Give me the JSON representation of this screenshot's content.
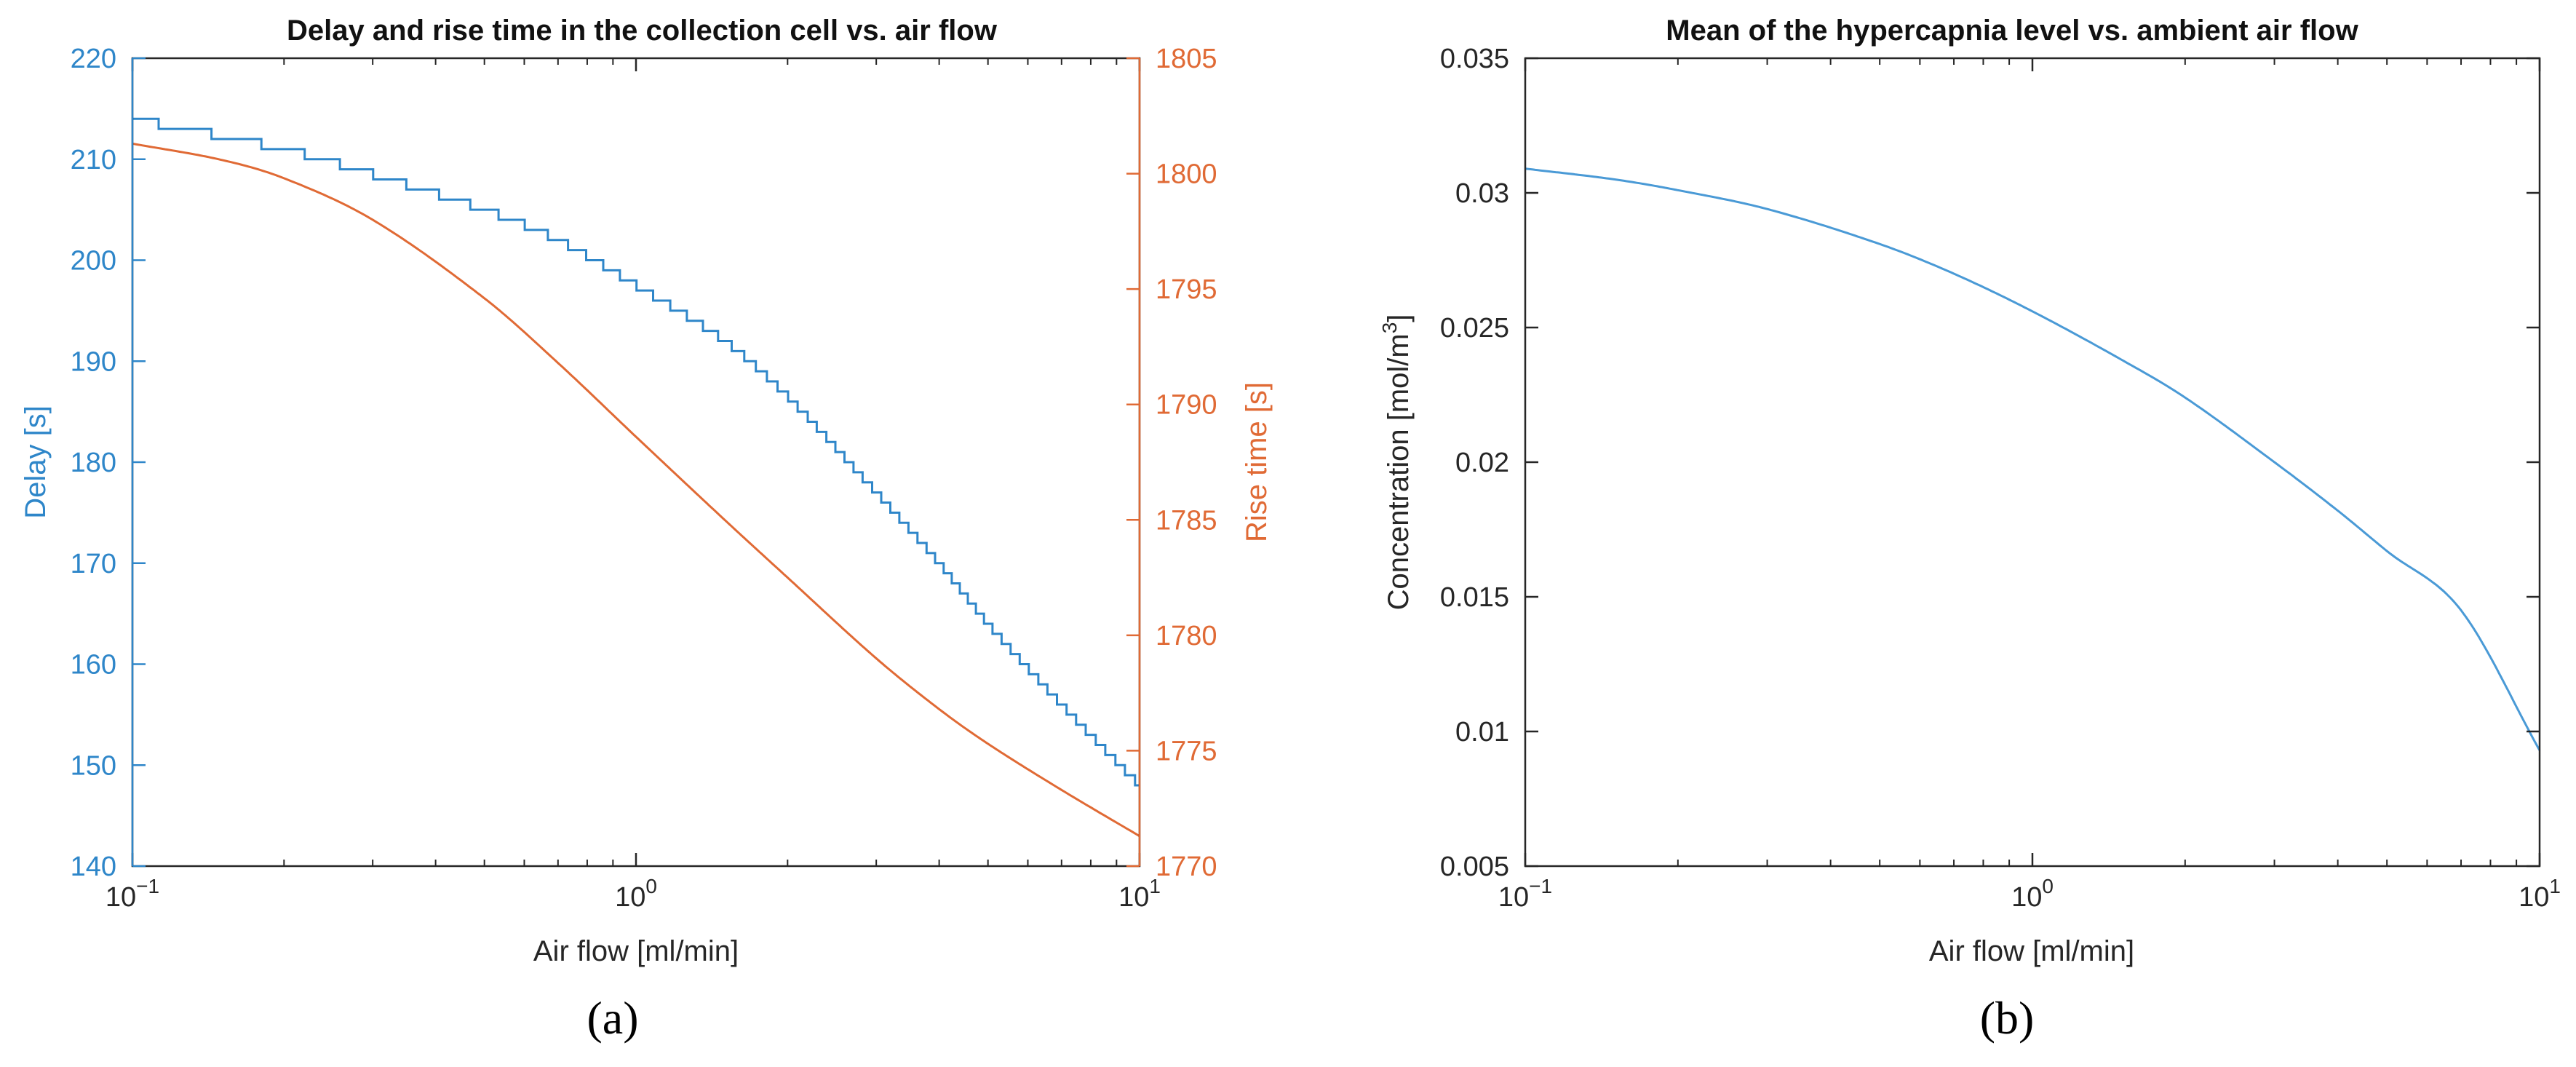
{
  "chart_data": [
    {
      "type": "line",
      "panel_label": "(a)",
      "title": "Delay and rise time in the collection cell vs. air flow",
      "xlabel": "Air flow [ml/min]",
      "xscale": "log",
      "xlim": [
        0.1,
        10
      ],
      "xtick_labels": [
        {
          "base": "10",
          "exp": "−1"
        },
        {
          "base": "10",
          "exp": "0"
        },
        {
          "base": "10",
          "exp": "1"
        }
      ],
      "ylabel_left": "Delay [s]",
      "ylim_left": [
        140,
        220
      ],
      "yticks_left": [
        "140",
        "150",
        "160",
        "170",
        "180",
        "190",
        "200",
        "210",
        "220"
      ],
      "ylabel_right": "Rise time [s]",
      "ylim_right": [
        1770,
        1805
      ],
      "yticks_right": [
        "1770",
        "1775",
        "1780",
        "1785",
        "1790",
        "1795",
        "1800",
        "1805"
      ],
      "colors": {
        "left": "#2e86c9",
        "right": "#e06a35"
      },
      "series": [
        {
          "name": "Delay",
          "axis": "left",
          "style": "staircase",
          "x": [
            0.1,
            0.2,
            0.3,
            0.5,
            0.7,
            1.0,
            1.5,
            2.0,
            3.0,
            4.0,
            5.0,
            7.0,
            10.0
          ],
          "y": [
            214,
            211,
            208.5,
            205,
            202,
            197.5,
            192,
            186.5,
            177,
            170,
            164,
            156,
            148
          ]
        },
        {
          "name": "Rise time",
          "axis": "right",
          "style": "line",
          "x": [
            0.1,
            0.15,
            0.2,
            0.3,
            0.5,
            0.7,
            1.0,
            1.5,
            2.0,
            3.0,
            4.0,
            5.0,
            7.0,
            10.0
          ],
          "y": [
            1801.3,
            1800.6,
            1799.8,
            1798.0,
            1794.6,
            1791.8,
            1788.6,
            1785.0,
            1782.5,
            1779.0,
            1776.8,
            1775.3,
            1773.3,
            1771.3
          ]
        }
      ]
    },
    {
      "type": "line",
      "panel_label": "(b)",
      "title": "Mean of the hypercapnia level vs. ambient air flow",
      "xlabel": "Air flow [ml/min]",
      "xscale": "log",
      "xlim": [
        0.1,
        10
      ],
      "xtick_labels": [
        {
          "base": "10",
          "exp": "−1"
        },
        {
          "base": "10",
          "exp": "0"
        },
        {
          "base": "10",
          "exp": "1"
        }
      ],
      "ylabel": "Concentration [mol/m",
      "ylabel_sup": "3",
      "ylabel_tail": "]",
      "ylim": [
        0.005,
        0.035
      ],
      "yticks": [
        "0.005",
        "0.01",
        "0.015",
        "0.02",
        "0.025",
        "0.03",
        "0.035"
      ],
      "colors": {
        "line": "#4a9ad6"
      },
      "series": [
        {
          "name": "Concentration",
          "x": [
            0.1,
            0.15,
            0.2,
            0.3,
            0.5,
            0.7,
            1.0,
            1.5,
            2.0,
            3.0,
            4.0,
            5.0,
            7.0,
            10.0
          ],
          "y": [
            0.0309,
            0.0305,
            0.0301,
            0.0294,
            0.0281,
            0.027,
            0.0256,
            0.0238,
            0.0224,
            0.02,
            0.0182,
            0.0167,
            0.0145,
            0.0093
          ]
        }
      ]
    }
  ]
}
